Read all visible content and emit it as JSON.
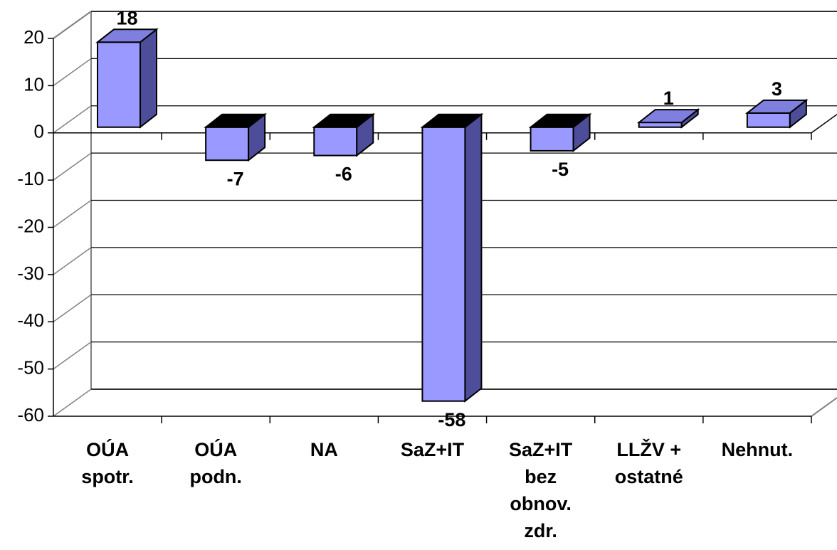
{
  "chart_data": {
    "type": "bar3d",
    "categories": [
      "OÚA spotr.",
      "OÚA podn.",
      "NA",
      "SaZ+IT",
      "SaZ+IT bez obnov. zdr.",
      "LLŽV + ostatné",
      "Nehnut."
    ],
    "values": [
      18,
      -7,
      -6,
      -58,
      -5,
      1,
      3
    ],
    "color": "#9999ff",
    "ylim": [
      -60,
      20
    ],
    "yticks": [
      20,
      10,
      0,
      -10,
      -20,
      -30,
      -40,
      -50,
      -60
    ],
    "grid": true
  }
}
